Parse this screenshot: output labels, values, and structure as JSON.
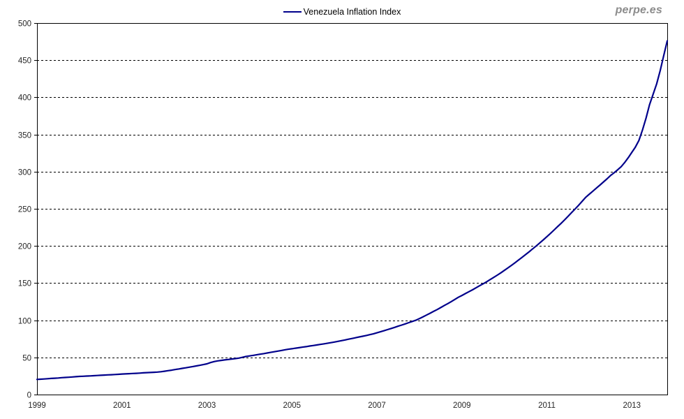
{
  "watermark": "perpe.es",
  "legend": {
    "label": "Venezuela Inflation Index"
  },
  "colors": {
    "line": "#00008B",
    "axis": "#000000",
    "grid": "#000000",
    "text": "#262626",
    "watermark": "#8c8c8c",
    "background": "#ffffff"
  },
  "chart_data": {
    "type": "line",
    "title": "",
    "xlabel": "",
    "ylabel": "",
    "ylim": [
      0,
      500
    ],
    "y_ticks": [
      0,
      50,
      100,
      150,
      200,
      250,
      300,
      350,
      400,
      450,
      500
    ],
    "x_tick_labels": [
      "1999",
      "2001",
      "2003",
      "2005",
      "2007",
      "2009",
      "2011",
      "2013"
    ],
    "x_start": {
      "year": 1999,
      "month": 1
    },
    "x_end": {
      "year": 2013,
      "month": 11
    },
    "x_frequency": "monthly",
    "grid": "dashed-horizontal",
    "legend_position": "top-center",
    "series": [
      {
        "name": "Venezuela Inflation Index",
        "color": "#00008B",
        "values": [
          20.4,
          20.7,
          21.0,
          21.3,
          21.7,
          22.0,
          22.3,
          22.7,
          23.0,
          23.3,
          23.7,
          24.1,
          24.4,
          24.6,
          24.9,
          25.1,
          25.4,
          25.7,
          25.9,
          26.2,
          26.5,
          26.7,
          27.0,
          27.3,
          27.6,
          27.8,
          28.1,
          28.4,
          28.6,
          28.9,
          29.2,
          29.5,
          29.7,
          30.0,
          30.3,
          30.7,
          31.4,
          32.1,
          32.8,
          33.6,
          34.4,
          35.2,
          36.0,
          36.8,
          37.7,
          38.5,
          39.4,
          40.3,
          41.4,
          43.0,
          44.4,
          45.3,
          46.0,
          46.6,
          47.2,
          47.8,
          48.4,
          49.1,
          50.1,
          51.2,
          52.0,
          52.7,
          53.5,
          54.3,
          55.1,
          55.9,
          56.8,
          57.6,
          58.5,
          59.3,
          60.2,
          61.0,
          61.7,
          62.4,
          63.1,
          63.8,
          64.5,
          65.3,
          66.0,
          66.7,
          67.5,
          68.2,
          69.0,
          69.8,
          70.7,
          71.6,
          72.6,
          73.5,
          74.5,
          75.5,
          76.5,
          77.5,
          78.5,
          79.5,
          80.6,
          81.7,
          83.1,
          84.5,
          85.9,
          87.4,
          88.9,
          90.4,
          92.0,
          93.5,
          95.1,
          96.8,
          98.4,
          100.0,
          102.3,
          104.6,
          107.0,
          109.4,
          111.9,
          114.4,
          117.0,
          119.7,
          122.4,
          125.1,
          128.0,
          130.9,
          133.4,
          135.9,
          138.4,
          141.0,
          143.7,
          146.4,
          149.1,
          151.9,
          154.8,
          157.7,
          160.7,
          163.8,
          167.1,
          170.5,
          173.9,
          177.4,
          181.0,
          184.7,
          188.4,
          192.2,
          196.1,
          200.0,
          204.1,
          208.2,
          212.5,
          216.8,
          221.3,
          225.8,
          230.4,
          235.1,
          240.0,
          244.9,
          249.9,
          255.0,
          260.2,
          265.6,
          269.7,
          273.8,
          277.9,
          282.0,
          286.2,
          290.4,
          294.8,
          298.5,
          302.5,
          306.8,
          312.4,
          318.9,
          326.0,
          333.0,
          342.0,
          356.0,
          372.0,
          390.0,
          404.0,
          418.0,
          436.0,
          456.0,
          476.0
        ]
      }
    ]
  }
}
